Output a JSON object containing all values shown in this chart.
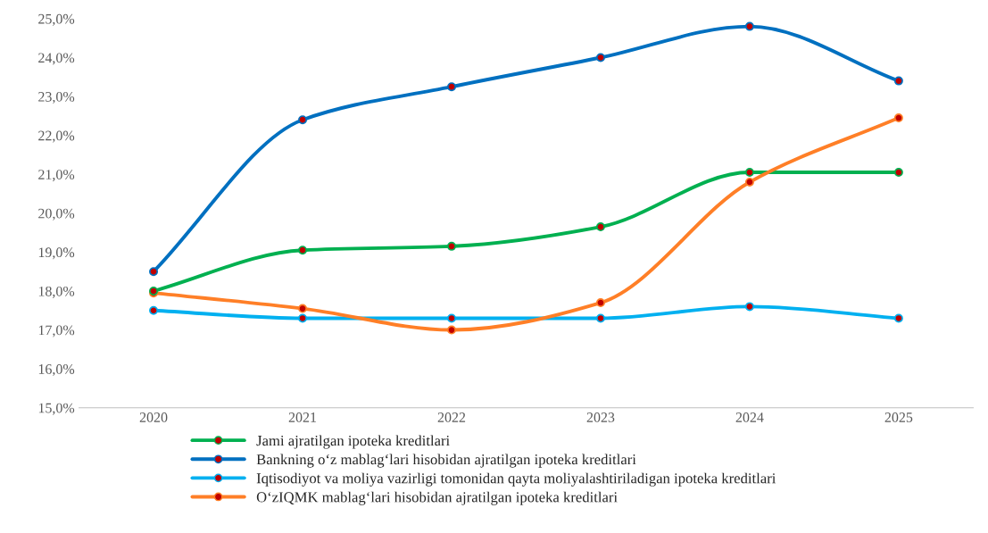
{
  "chart_data": {
    "type": "line",
    "categories": [
      "2020",
      "2021",
      "2022",
      "2023",
      "2024",
      "2025"
    ],
    "series": [
      {
        "name": "Jami ajratilgan ipoteka kreditlari",
        "color": "#00b050",
        "values": [
          18.0,
          19.05,
          19.15,
          19.65,
          21.05,
          21.05
        ]
      },
      {
        "name": "Bankning o‘z mablag‘lari hisobidan ajratilgan ipoteka kreditlari",
        "color": "#0070c0",
        "values": [
          18.5,
          22.4,
          23.25,
          24.0,
          24.8,
          23.4
        ]
      },
      {
        "name": "Iqtisodiyot va moliya vazirligi tomonidan qayta moliyalashtiriladigan ipoteka kreditlari",
        "color": "#00b0f0",
        "values": [
          17.5,
          17.3,
          17.3,
          17.3,
          17.6,
          17.3
        ]
      },
      {
        "name": "O‘zIQMK mablag‘lari hisobidan ajratilgan ipoteka kreditlari",
        "color": "#ff7f27",
        "values": [
          17.95,
          17.55,
          17.0,
          17.7,
          20.8,
          22.45
        ]
      }
    ],
    "ylim": [
      15,
      25
    ],
    "yticks": [
      {
        "value": 15,
        "label": "15,0%"
      },
      {
        "value": 16,
        "label": "16,0%"
      },
      {
        "value": 17,
        "label": "17,0%"
      },
      {
        "value": 18,
        "label": "18,0%"
      },
      {
        "value": 19,
        "label": "19,0%"
      },
      {
        "value": 20,
        "label": "20,0%"
      },
      {
        "value": 21,
        "label": "21,0%"
      },
      {
        "value": 22,
        "label": "22,0%"
      },
      {
        "value": 23,
        "label": "23,0%"
      },
      {
        "value": 24,
        "label": "24,0%"
      },
      {
        "value": 25,
        "label": "25,0%"
      }
    ],
    "grid": false,
    "legend": "bottom",
    "marker": "circle",
    "line_style": "solid"
  }
}
